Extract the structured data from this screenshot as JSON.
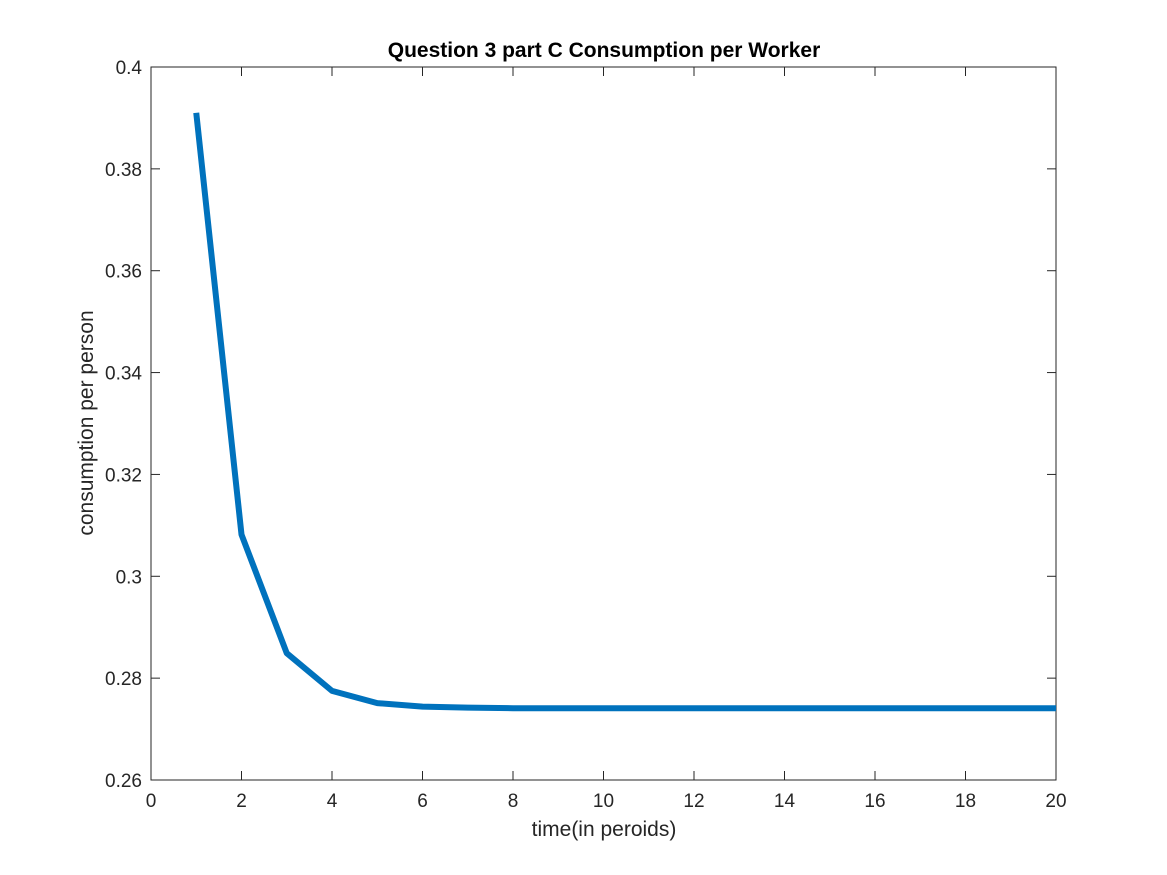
{
  "chart_data": {
    "type": "line",
    "title": "Question 3 part C Consumption per Worker",
    "xlabel": "time(in peroids)",
    "ylabel": "consumption per person",
    "xlim": [
      0,
      20
    ],
    "ylim": [
      0.26,
      0.4
    ],
    "xticks": [
      0,
      2,
      4,
      6,
      8,
      10,
      12,
      14,
      16,
      18,
      20
    ],
    "xtick_labels": [
      "0",
      "2",
      "4",
      "6",
      "8",
      "10",
      "12",
      "14",
      "16",
      "18",
      "20"
    ],
    "yticks": [
      0.26,
      0.28,
      0.3,
      0.32,
      0.34,
      0.36,
      0.38,
      0.4
    ],
    "ytick_labels": [
      "0.26",
      "0.28",
      "0.3",
      "0.32",
      "0.34",
      "0.36",
      "0.38",
      "0.4"
    ],
    "grid": false,
    "box": true,
    "series": [
      {
        "color": "#0072BD",
        "x": [
          1,
          2,
          3,
          4,
          5,
          6,
          7,
          8,
          9,
          10,
          11,
          12,
          13,
          14,
          15,
          16,
          17,
          18,
          19,
          20
        ],
        "y": [
          0.391,
          0.3082,
          0.2849,
          0.2775,
          0.2751,
          0.2744,
          0.2742,
          0.2741,
          0.2741,
          0.2741,
          0.2741,
          0.2741,
          0.2741,
          0.2741,
          0.2741,
          0.2741,
          0.2741,
          0.2741,
          0.2741,
          0.2741
        ]
      }
    ]
  }
}
